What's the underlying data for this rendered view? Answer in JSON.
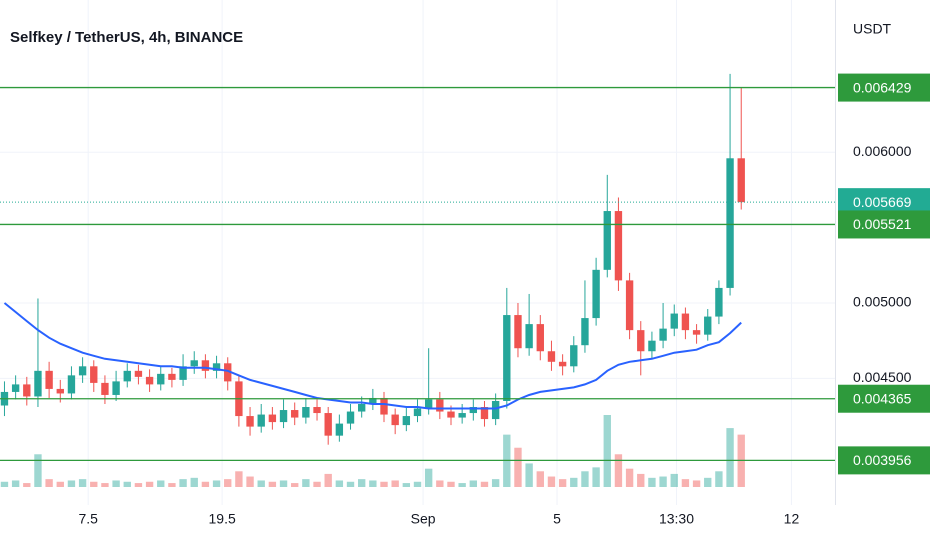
{
  "chart_data": {
    "type": "candlestick",
    "title": "Selfkey / TetherUS, 4h, BINANCE",
    "y_axis_label": "USDT",
    "x": [
      0,
      1,
      2,
      3,
      4,
      5,
      6,
      7,
      8,
      9,
      10,
      11,
      12,
      13,
      14,
      15,
      16,
      17,
      18,
      19,
      20,
      21,
      22,
      23,
      24,
      25,
      26,
      27,
      28,
      29,
      30,
      31,
      32,
      33,
      34,
      35,
      36,
      37,
      38,
      39,
      40,
      41,
      42,
      43,
      44,
      45,
      46,
      47,
      48,
      49,
      50,
      51,
      52,
      53,
      54,
      55,
      56,
      57,
      58,
      59,
      60,
      61,
      62,
      63,
      64,
      65,
      66
    ],
    "open": [
      0.00432,
      0.00441,
      0.00446,
      0.00438,
      0.00455,
      0.00443,
      0.0044,
      0.00452,
      0.00458,
      0.00447,
      0.00439,
      0.00448,
      0.00455,
      0.00451,
      0.00446,
      0.00453,
      0.00449,
      0.00458,
      0.00462,
      0.00455,
      0.0046,
      0.00448,
      0.00425,
      0.00418,
      0.00426,
      0.00421,
      0.00429,
      0.00424,
      0.00431,
      0.00427,
      0.00412,
      0.0042,
      0.00428,
      0.00433,
      0.00437,
      0.00426,
      0.00419,
      0.00425,
      0.0043,
      0.00436,
      0.00428,
      0.00424,
      0.00427,
      0.00431,
      0.00423,
      0.00435,
      0.00492,
      0.0047,
      0.00486,
      0.00468,
      0.00461,
      0.00458,
      0.00472,
      0.0049,
      0.00522,
      0.00561,
      0.00515,
      0.00482,
      0.00468,
      0.00475,
      0.00483,
      0.00493,
      0.00482,
      0.00479,
      0.00491,
      0.0051,
      0.00596
    ],
    "high": [
      0.00448,
      0.00452,
      0.00451,
      0.00503,
      0.00461,
      0.00449,
      0.00458,
      0.00464,
      0.00462,
      0.00452,
      0.00455,
      0.0046,
      0.00459,
      0.00456,
      0.00458,
      0.00457,
      0.00466,
      0.00468,
      0.00466,
      0.00465,
      0.00464,
      0.00452,
      0.00431,
      0.00433,
      0.00431,
      0.00436,
      0.00434,
      0.00437,
      0.00436,
      0.00431,
      0.00426,
      0.00433,
      0.00438,
      0.00443,
      0.00441,
      0.0043,
      0.00431,
      0.00436,
      0.0047,
      0.00441,
      0.00432,
      0.00433,
      0.00436,
      0.00435,
      0.0044,
      0.0051,
      0.005,
      0.00506,
      0.00492,
      0.00475,
      0.00466,
      0.00478,
      0.00515,
      0.0053,
      0.00585,
      0.0057,
      0.0052,
      0.00488,
      0.00481,
      0.005,
      0.00499,
      0.00497,
      0.00486,
      0.00496,
      0.00515,
      0.00652,
      0.00643
    ],
    "low": [
      0.00425,
      0.00436,
      0.00432,
      0.00431,
      0.00437,
      0.00434,
      0.00436,
      0.00447,
      0.00441,
      0.00433,
      0.00435,
      0.00444,
      0.00446,
      0.00441,
      0.00442,
      0.00444,
      0.00445,
      0.00453,
      0.0045,
      0.0045,
      0.00442,
      0.00418,
      0.00412,
      0.00414,
      0.00416,
      0.00417,
      0.00419,
      0.0042,
      0.00422,
      0.00406,
      0.00408,
      0.00416,
      0.00424,
      0.00429,
      0.00421,
      0.00413,
      0.00415,
      0.00421,
      0.00426,
      0.00423,
      0.00419,
      0.0042,
      0.00422,
      0.00418,
      0.00419,
      0.0043,
      0.00464,
      0.00465,
      0.00462,
      0.00455,
      0.00452,
      0.00454,
      0.00467,
      0.00485,
      0.00517,
      0.00508,
      0.00476,
      0.00452,
      0.00463,
      0.0047,
      0.00478,
      0.00476,
      0.00473,
      0.00475,
      0.00486,
      0.00505,
      0.00562
    ],
    "close": [
      0.00441,
      0.00446,
      0.00438,
      0.00455,
      0.00443,
      0.0044,
      0.00452,
      0.00458,
      0.00447,
      0.00439,
      0.00448,
      0.00455,
      0.00451,
      0.00446,
      0.00453,
      0.00449,
      0.00458,
      0.00462,
      0.00455,
      0.0046,
      0.00448,
      0.00425,
      0.00418,
      0.00426,
      0.00421,
      0.00429,
      0.00424,
      0.00431,
      0.00427,
      0.00412,
      0.0042,
      0.00428,
      0.00433,
      0.00437,
      0.00426,
      0.00419,
      0.00425,
      0.0043,
      0.00436,
      0.00428,
      0.00424,
      0.00427,
      0.00431,
      0.00423,
      0.00435,
      0.00492,
      0.0047,
      0.00486,
      0.00468,
      0.00461,
      0.00458,
      0.00472,
      0.0049,
      0.00522,
      0.00561,
      0.00515,
      0.00482,
      0.00468,
      0.00475,
      0.00483,
      0.00493,
      0.00482,
      0.00479,
      0.00491,
      0.0051,
      0.00596,
      0.005669
    ],
    "volume": [
      4,
      5,
      3,
      25,
      6,
      4,
      5,
      6,
      4,
      3,
      5,
      4,
      3,
      4,
      5,
      3,
      6,
      7,
      4,
      5,
      6,
      12,
      8,
      5,
      4,
      5,
      3,
      6,
      4,
      10,
      5,
      4,
      6,
      5,
      4,
      5,
      3,
      4,
      14,
      5,
      4,
      3,
      5,
      4,
      6,
      40,
      30,
      18,
      12,
      8,
      6,
      7,
      12,
      15,
      55,
      25,
      14,
      10,
      7,
      8,
      10,
      6,
      5,
      7,
      12,
      45,
      40
    ],
    "up_color": "#26a69a",
    "down_color": "#ef5350",
    "ma": {
      "color": "#2962ff",
      "values": [
        0.005,
        0.00494,
        0.00488,
        0.00482,
        0.00477,
        0.00473,
        0.0047,
        0.00467,
        0.00465,
        0.00463,
        0.00462,
        0.00461,
        0.0046,
        0.00459,
        0.00458,
        0.00458,
        0.00457,
        0.00457,
        0.00457,
        0.00456,
        0.00455,
        0.00452,
        0.00449,
        0.00447,
        0.00445,
        0.00443,
        0.00441,
        0.00439,
        0.00437,
        0.00436,
        0.00435,
        0.00434,
        0.00434,
        0.00433,
        0.00433,
        0.00432,
        0.00431,
        0.00431,
        0.0043,
        0.0043,
        0.0043,
        0.0043,
        0.0043,
        0.0043,
        0.0043,
        0.00432,
        0.00436,
        0.00439,
        0.00441,
        0.00442,
        0.00443,
        0.00444,
        0.00446,
        0.00449,
        0.00455,
        0.00459,
        0.00461,
        0.00462,
        0.00463,
        0.00465,
        0.00467,
        0.00468,
        0.00469,
        0.00472,
        0.00474,
        0.0048,
        0.00487
      ]
    },
    "levels": {
      "color": "#2e9a3c",
      "values": [
        0.006429,
        0.005521,
        0.004365,
        0.003956
      ]
    },
    "last_price": {
      "value": 0.005669,
      "color": "#22ab94"
    },
    "xlim": [
      -0.4,
      74.4
    ],
    "xticks": [
      7.5,
      19.5,
      {
        "value": 37.5,
        "label": "Sep"
      },
      {
        "value": 49.5,
        "label": "5"
      },
      {
        "value": 60.2,
        "label": "13:30"
      },
      {
        "value": 70.5,
        "label": "12"
      }
    ],
    "ylim": [
      0.00366,
      0.00701
    ],
    "yticks": [
      {
        "value": 0.0045,
        "label": "0.004500"
      },
      {
        "value": 0.005,
        "label": "0.005000"
      },
      {
        "value": 0.006,
        "label": "0.006000"
      }
    ],
    "grid": true
  }
}
